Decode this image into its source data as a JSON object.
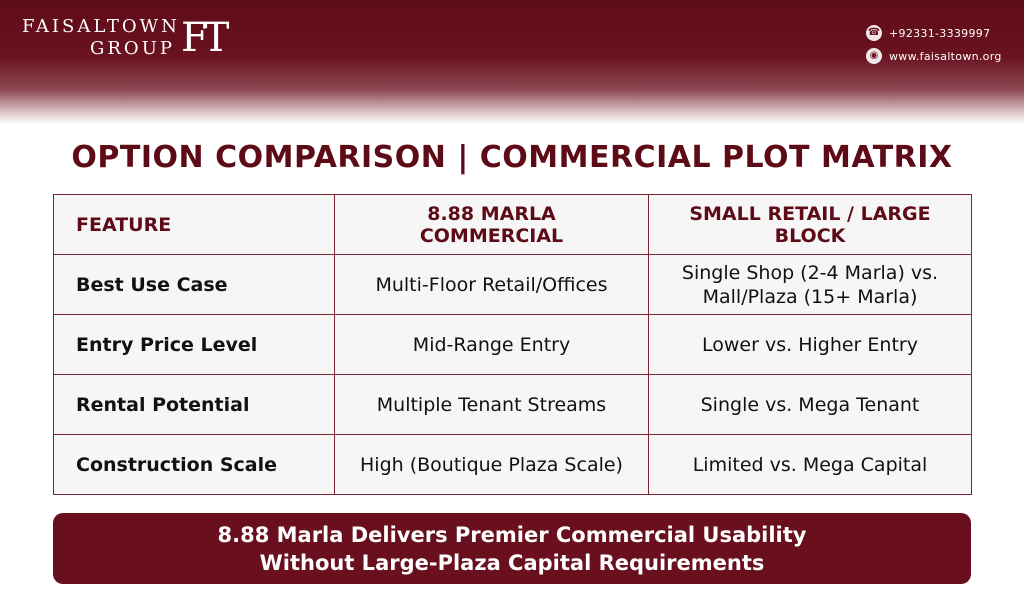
{
  "brand": {
    "line1": "FAISALTOWN",
    "line2": "GROUP",
    "logo": "FT"
  },
  "contact": {
    "phone": "+92331-3339997",
    "website": "www.faisaltown.org",
    "phone_icon": "phone-icon",
    "web_icon": "globe-icon"
  },
  "title": "OPTION COMPARISON | COMMERCIAL PLOT MATRIX",
  "table": {
    "headers": [
      "FEATURE",
      "8.88 MARLA COMMERCIAL",
      "SMALL RETAIL / LARGE BLOCK"
    ],
    "rows": [
      {
        "feature": "Best Use Case",
        "marla": "Multi-Floor Retail/Offices",
        "other_l1": "Single Shop (2-4 Marla) vs.",
        "other_l2": "Mall/Plaza (15+ Marla)"
      },
      {
        "feature": "Entry Price Level",
        "marla": "Mid-Range Entry",
        "other_l1": "Lower vs. Higher Entry",
        "other_l2": ""
      },
      {
        "feature": "Rental Potential",
        "marla": "Multiple Tenant Streams",
        "other_l1": "Single vs. Mega Tenant",
        "other_l2": ""
      },
      {
        "feature": "Construction Scale",
        "marla": "High (Boutique Plaza Scale)",
        "other_l1": "Limited vs. Mega Capital",
        "other_l2": ""
      }
    ]
  },
  "banner": {
    "line1": "8.88 Marla Delivers Premier Commercial Usability",
    "line2": "Without Large-Plaza Capital Requirements"
  },
  "colors": {
    "brand": "#5e0b18",
    "banner": "#6a0f1e"
  }
}
